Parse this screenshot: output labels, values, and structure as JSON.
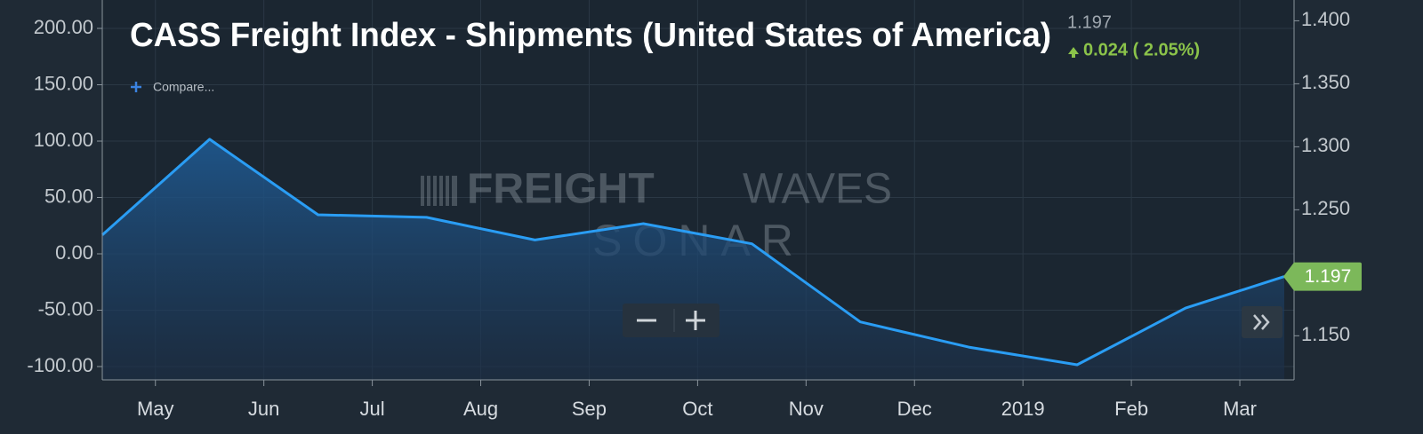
{
  "chart_data": {
    "type": "line",
    "title": "CASS Freight Index - Shipments (United States of America)",
    "last_value": "1.197",
    "change": "0.024 ( 2.05%)",
    "compare": "Compare...",
    "watermark": {
      "bold": "FREIGHT",
      "light": "WAVES",
      "sub": "SONAR"
    },
    "x": [
      -0.49,
      0.5,
      1.5,
      2.5,
      3.5,
      4.5,
      5.5,
      6.5,
      7.5,
      8.5,
      9.5,
      10.41
    ],
    "xlim": [
      -0.49,
      10.5
    ],
    "xticks": [
      {
        "value": 0,
        "label": "May"
      },
      {
        "value": 1,
        "label": "Jun"
      },
      {
        "value": 2,
        "label": "Jul"
      },
      {
        "value": 3,
        "label": "Aug"
      },
      {
        "value": 4,
        "label": "Sep"
      },
      {
        "value": 5,
        "label": "Oct"
      },
      {
        "value": 6,
        "label": "Nov"
      },
      {
        "value": 7,
        "label": "Dec"
      },
      {
        "value": 8,
        "label": "2019"
      },
      {
        "value": 9,
        "label": "Feb"
      },
      {
        "value": 10,
        "label": "Mar"
      }
    ],
    "ylim": [
      -111.8,
      225.2
    ],
    "yticks": [
      {
        "value": 200,
        "label": "200.00"
      },
      {
        "value": 150,
        "label": "150.00"
      },
      {
        "value": 100,
        "label": "100.00"
      },
      {
        "value": 50,
        "label": "50.00"
      },
      {
        "value": 0,
        "label": "0.00"
      },
      {
        "value": -50,
        "label": "-50.00"
      },
      {
        "value": -100,
        "label": "-100.00"
      }
    ],
    "y2lim": [
      1.115,
      1.4165
    ],
    "y2ticks": [
      {
        "value": 1.4,
        "label": "1.400"
      },
      {
        "value": 1.35,
        "label": "1.350"
      },
      {
        "value": 1.3,
        "label": "1.300"
      },
      {
        "value": 1.25,
        "label": "1.250"
      },
      {
        "value": 1.15,
        "label": "1.150"
      }
    ],
    "grid": true,
    "series": [
      {
        "name": "CASS Freight Index - Shipments",
        "color": "#2a9df4",
        "axis": "y2",
        "values": [
          1.23,
          1.306,
          1.246,
          1.244,
          1.226,
          1.239,
          1.223,
          1.161,
          1.141,
          1.127,
          1.172,
          1.197
        ]
      }
    ]
  }
}
